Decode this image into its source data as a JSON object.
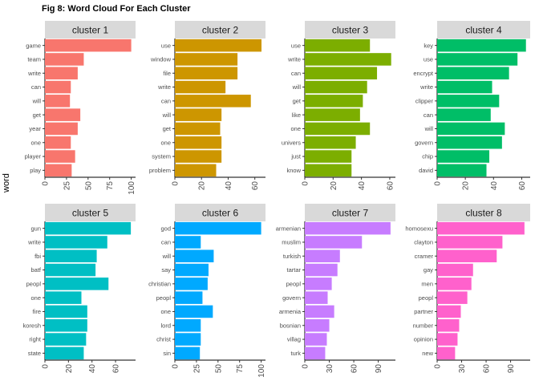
{
  "figure": {
    "title": "Fig 8: Word Cloud For Each Cluster",
    "y_axis_title": "word"
  },
  "chart_data": [
    {
      "type": "bar",
      "orientation": "horizontal",
      "panel": "cluster 1",
      "color": "#F8766D",
      "categories": [
        "game",
        "team",
        "write",
        "can",
        "will",
        "get",
        "year",
        "one",
        "player",
        "play"
      ],
      "values": [
        100,
        45,
        38,
        30,
        29,
        41,
        38,
        30,
        35,
        31
      ],
      "xlim": [
        0,
        105
      ],
      "xticks": [
        0,
        25,
        50,
        75,
        100
      ]
    },
    {
      "type": "bar",
      "orientation": "horizontal",
      "panel": "cluster 2",
      "color": "#CD9600",
      "categories": [
        "use",
        "window",
        "file",
        "write",
        "can",
        "will",
        "get",
        "one",
        "system",
        "problem"
      ],
      "values": [
        65,
        47,
        47,
        38,
        57,
        35,
        34,
        35,
        35,
        31
      ],
      "xlim": [
        0,
        68
      ],
      "xticks": [
        0,
        20,
        40,
        60
      ]
    },
    {
      "type": "bar",
      "orientation": "horizontal",
      "panel": "cluster 3",
      "color": "#7CAE00",
      "categories": [
        "use",
        "write",
        "can",
        "will",
        "get",
        "like",
        "one",
        "univers",
        "just",
        "know"
      ],
      "values": [
        46,
        61,
        51,
        44,
        41,
        39,
        46,
        36,
        33,
        33
      ],
      "xlim": [
        0,
        64
      ],
      "xticks": [
        0,
        20,
        40,
        60
      ]
    },
    {
      "type": "bar",
      "orientation": "horizontal",
      "panel": "cluster 4",
      "color": "#00BE67",
      "categories": [
        "key",
        "use",
        "encrypt",
        "write",
        "clipper",
        "can",
        "will",
        "govern",
        "chip",
        "david"
      ],
      "values": [
        63,
        57,
        51,
        39,
        44,
        38,
        48,
        46,
        37,
        35
      ],
      "xlim": [
        0,
        66
      ],
      "xticks": [
        0,
        20,
        40,
        60
      ]
    },
    {
      "type": "bar",
      "orientation": "horizontal",
      "panel": "cluster 5",
      "color": "#00BFC4",
      "categories": [
        "gun",
        "write",
        "fbi",
        "batf",
        "peopl",
        "one",
        "fire",
        "koresh",
        "right",
        "state"
      ],
      "values": [
        73,
        53,
        44,
        43,
        54,
        31,
        36,
        36,
        35,
        33
      ],
      "xlim": [
        0,
        77
      ],
      "xticks": [
        0,
        20,
        40,
        60
      ]
    },
    {
      "type": "bar",
      "orientation": "horizontal",
      "panel": "cluster 6",
      "color": "#00A9FF",
      "categories": [
        "god",
        "can",
        "will",
        "say",
        "christian",
        "peopl",
        "one",
        "lord",
        "christ",
        "sin"
      ],
      "values": [
        100,
        30,
        45,
        39,
        38,
        32,
        44,
        30,
        30,
        29
      ],
      "xlim": [
        0,
        105
      ],
      "xticks": [
        0,
        25,
        50,
        75,
        100
      ]
    },
    {
      "type": "bar",
      "orientation": "horizontal",
      "panel": "cluster 7",
      "color": "#C77CFF",
      "categories": [
        "armenian",
        "muslim",
        "turkish",
        "tartar",
        "peopl",
        "govern",
        "armenia",
        "bosnian",
        "villag",
        "turk"
      ],
      "values": [
        105,
        70,
        43,
        40,
        33,
        28,
        36,
        30,
        27,
        25
      ],
      "xlim": [
        0,
        111
      ],
      "xticks": [
        0,
        30,
        60,
        90
      ]
    },
    {
      "type": "bar",
      "orientation": "horizontal",
      "panel": "cluster 8",
      "color": "#FF61CC",
      "categories": [
        "homosexu",
        "clayton",
        "cramer",
        "gay",
        "men",
        "peopl",
        "partner",
        "number",
        "opinion",
        "new"
      ],
      "values": [
        107,
        80,
        73,
        44,
        42,
        37,
        29,
        27,
        25,
        22
      ],
      "xlim": [
        0,
        114
      ],
      "xticks": [
        0,
        30,
        60,
        90
      ]
    }
  ]
}
